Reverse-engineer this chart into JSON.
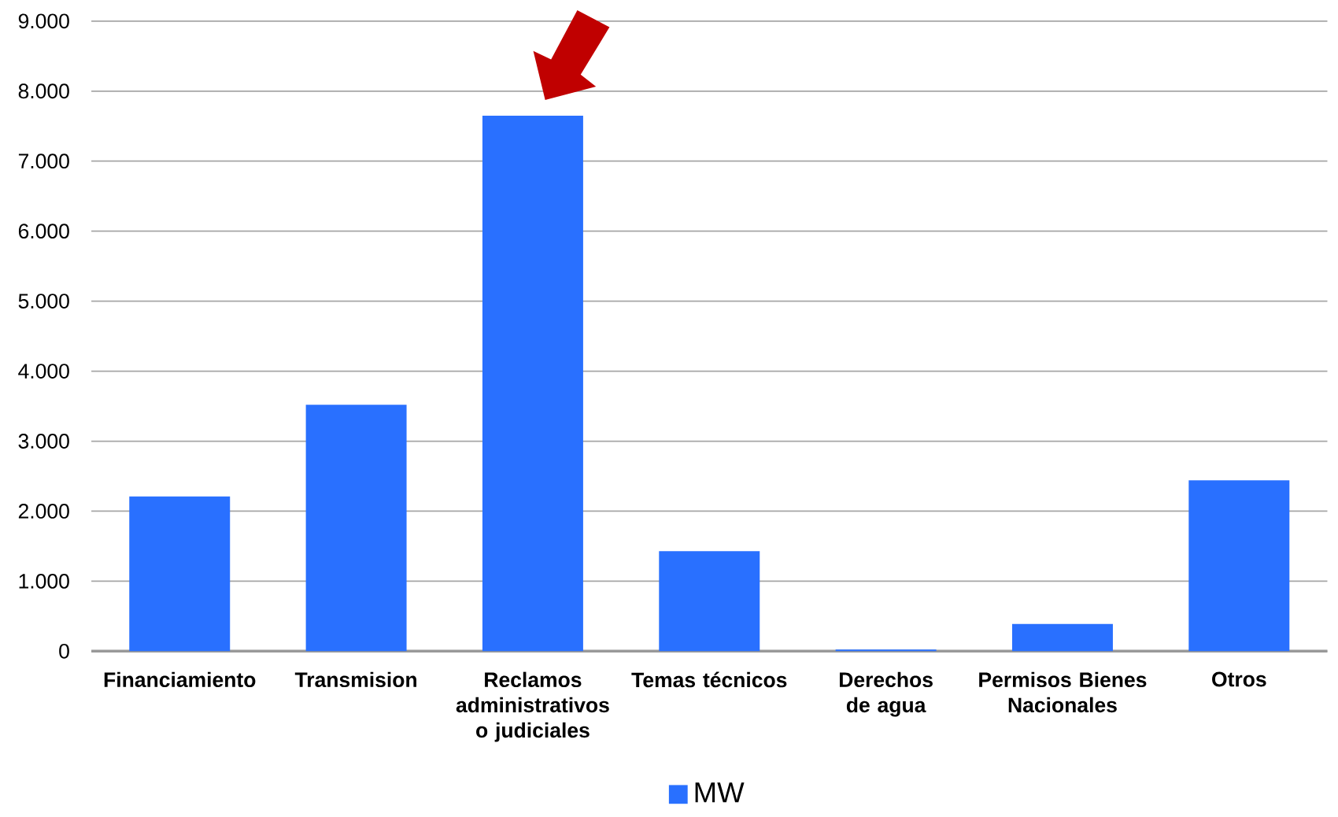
{
  "chart_data": {
    "type": "bar",
    "categories": [
      "Financiamiento",
      "Transmision",
      "Reclamos administrativos o judiciales",
      "Temas técnicos",
      "Derechos de agua",
      "Permisos Bienes Nacionales",
      "Otros"
    ],
    "series": [
      {
        "name": "MW",
        "color": "#2970ff",
        "values": [
          2210,
          3520,
          7650,
          1430,
          25,
          390,
          2440
        ]
      }
    ],
    "ylim": [
      0,
      9000
    ],
    "yticks": [
      {
        "value": 0,
        "label": "0"
      },
      {
        "value": 1000,
        "label": "1.000"
      },
      {
        "value": 2000,
        "label": "2.000"
      },
      {
        "value": 3000,
        "label": "3.000"
      },
      {
        "value": 4000,
        "label": "4.000"
      },
      {
        "value": 5000,
        "label": "5.000"
      },
      {
        "value": 6000,
        "label": "6.000"
      },
      {
        "value": 7000,
        "label": "7.000"
      },
      {
        "value": 8000,
        "label": "8.000"
      },
      {
        "value": 9000,
        "label": "9.000"
      }
    ],
    "grid": "y",
    "legend": "bottom"
  }
}
